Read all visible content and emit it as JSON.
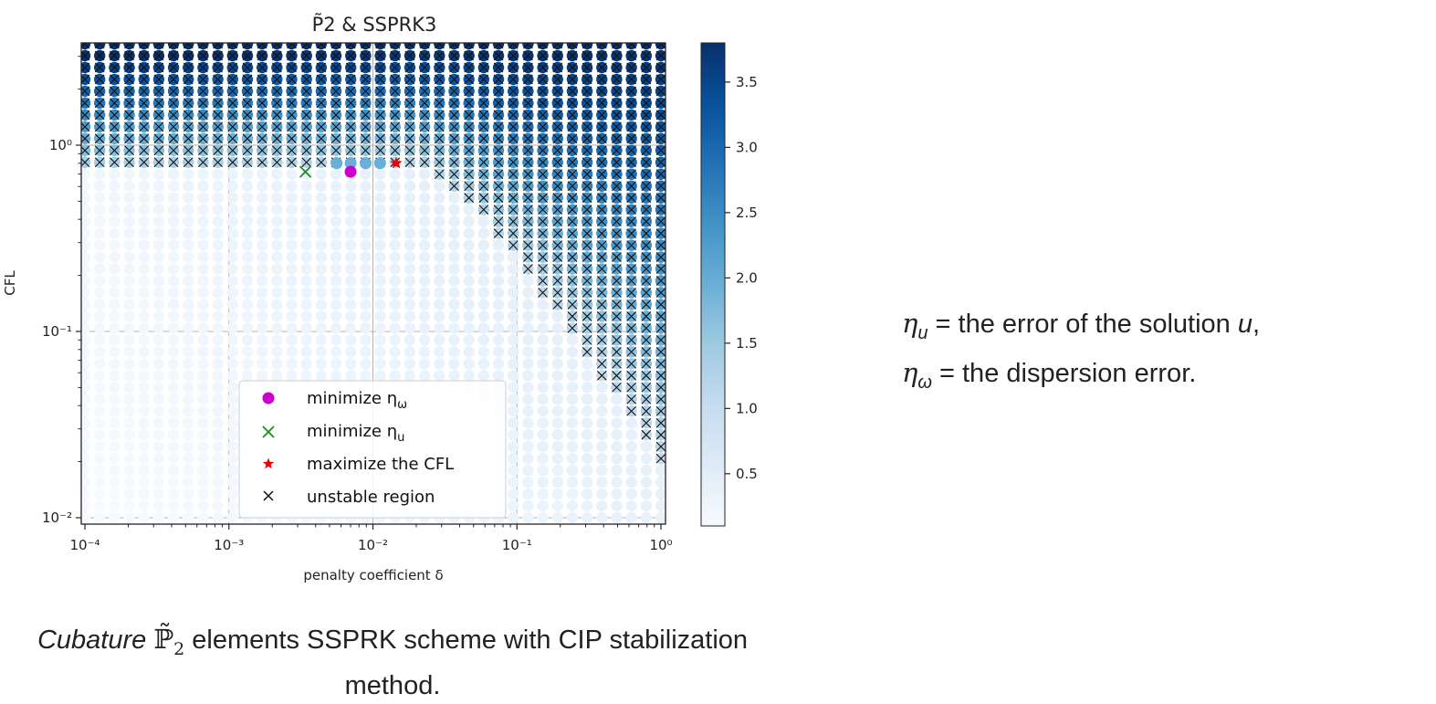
{
  "chart_data": {
    "type": "scatter",
    "title": "P̃2 & SSPRK3",
    "xlabel": "penalty coefficient δ",
    "ylabel": "CFL",
    "x_scale": "log",
    "y_scale": "log",
    "xlim": [
      0.0001,
      1
    ],
    "ylim": [
      0.01,
      3.5
    ],
    "x_ticks": [
      "10⁻⁴",
      "10⁻³",
      "10⁻²",
      "10⁻¹",
      "10⁰"
    ],
    "y_ticks": [
      "10⁻²",
      "10⁻¹",
      "10⁰"
    ],
    "grid": true,
    "colorbar": {
      "range": [
        0.1,
        3.8
      ],
      "ticks": [
        "0.5",
        "1.0",
        "1.5",
        "2.0",
        "2.5",
        "3.0",
        "3.5"
      ],
      "colormap": "Blues"
    },
    "grid_points": {
      "x_range": [
        0.0001,
        1
      ],
      "y_range": [
        0.01,
        3.5
      ],
      "nx": 40,
      "ny": 41
    },
    "stability_boundary": {
      "cfl_max_low_delta": 0.78,
      "boundary_delta": [
        0.02,
        0.03,
        0.05,
        0.08,
        0.12,
        0.2,
        0.3,
        0.45,
        0.65,
        0.9,
        1.0
      ],
      "boundary_cfl": [
        0.78,
        0.65,
        0.45,
        0.3,
        0.2,
        0.12,
        0.075,
        0.05,
        0.032,
        0.022,
        0.019
      ]
    },
    "markers": {
      "minimize_eta_omega": {
        "x": 0.007,
        "y": 0.72,
        "color": "#cc00cc"
      },
      "minimize_eta_u": {
        "x": 0.0034,
        "y": 0.72,
        "color": "#1a8f1a"
      },
      "maximize_cfl": {
        "x": 0.0145,
        "y": 0.8,
        "color": "#ee0000"
      },
      "highlight_points": [
        {
          "x": 0.0056,
          "y": 0.8
        },
        {
          "x": 0.007,
          "y": 0.8
        },
        {
          "x": 0.0089,
          "y": 0.8
        },
        {
          "x": 0.0112,
          "y": 0.8
        }
      ]
    },
    "legend": {
      "placement": "lower-right",
      "entries": [
        "minimize η",
        "minimize η",
        "maximize the CFL",
        "unstable region"
      ],
      "subscripts": [
        "ω",
        "u",
        "",
        ""
      ]
    }
  },
  "caption": {
    "italic": "Cubature",
    "symbol": "ℙ̃",
    "subscript": "2",
    "text": " elements SSPRK scheme with CIP stabilization method."
  },
  "definitions": [
    {
      "symbol": "η",
      "sub": "u",
      "text": " = the error of the solution ",
      "var": "u",
      "end": ","
    },
    {
      "symbol": "η",
      "sub": "ω",
      "text": " = the dispersion error.",
      "var": "",
      "end": ""
    }
  ]
}
